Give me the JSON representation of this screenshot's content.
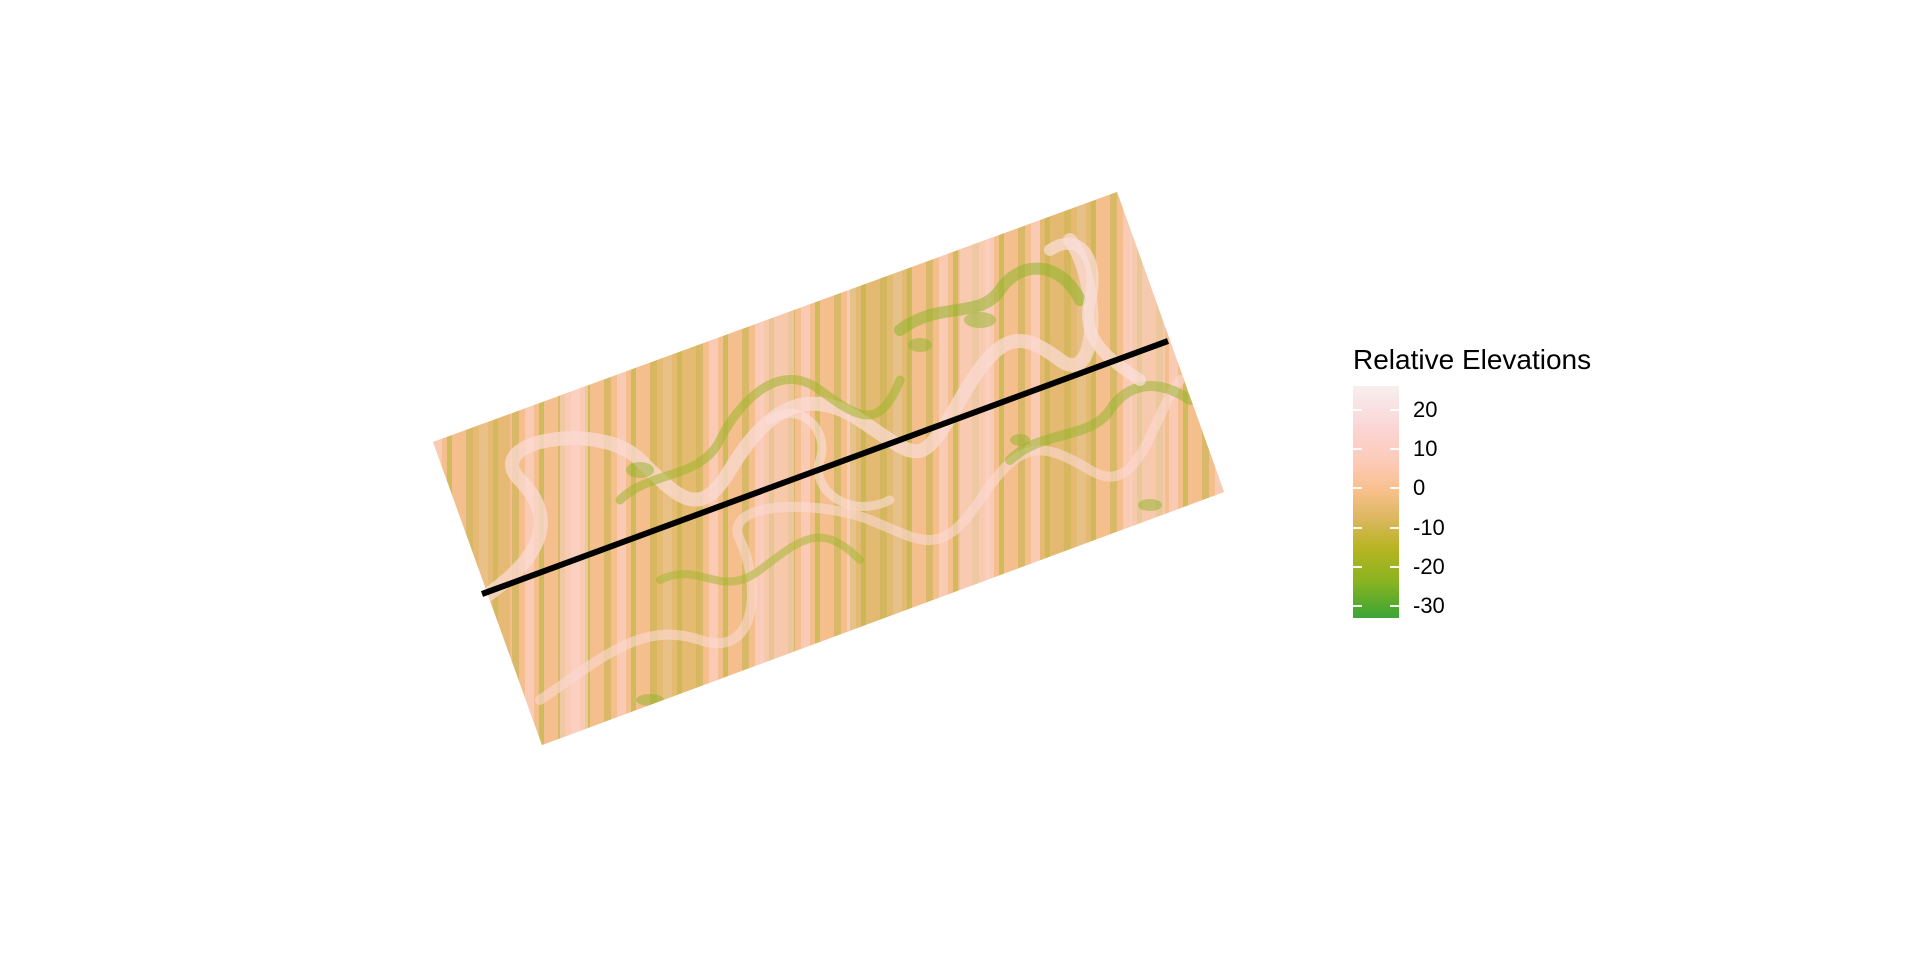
{
  "legend": {
    "title": "Relative Elevations",
    "ticks": [
      {
        "label": "20",
        "value": 20
      },
      {
        "label": "10",
        "value": 10
      },
      {
        "label": "0",
        "value": 0
      },
      {
        "label": "-10",
        "value": -10
      },
      {
        "label": "-20",
        "value": -20
      },
      {
        "label": "-30",
        "value": -30
      }
    ],
    "range": [
      -33,
      26
    ],
    "colors": {
      "high": "#f7efef",
      "pink": "#fbd5d5",
      "mid": "#f8c08c",
      "tan": "#dcb760",
      "olive": "#b7b421",
      "low": "#3aa537"
    }
  },
  "map": {
    "transect_line_color": "#000000"
  }
}
